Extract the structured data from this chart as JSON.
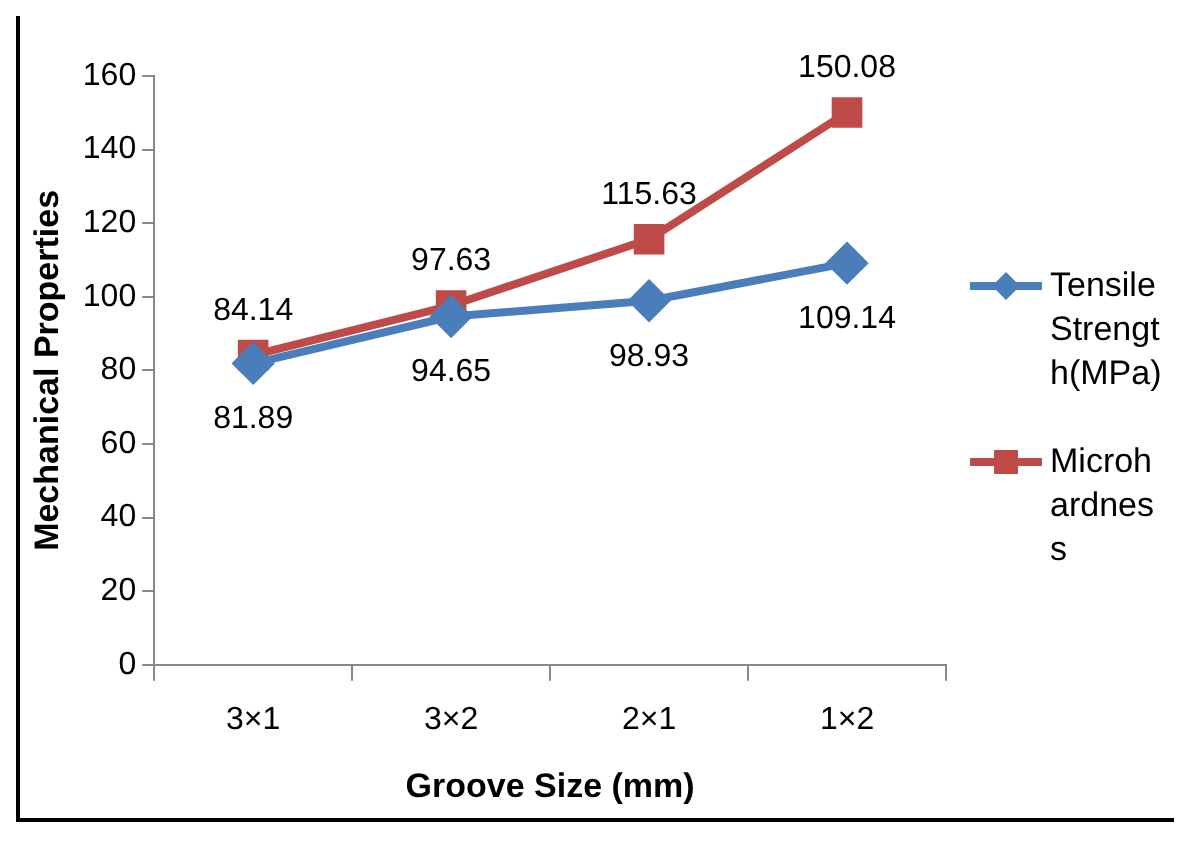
{
  "chart_data": {
    "type": "line",
    "xlabel": "Groove Size (mm)",
    "ylabel": "Mechanical Properties",
    "categories": [
      "3×1",
      "3×2",
      "2×1",
      "1×2"
    ],
    "series": [
      {
        "name": "Tensile Strength(MPa)",
        "color": "#4a7ebb",
        "marker": "diamond",
        "values": [
          81.89,
          94.65,
          98.93,
          109.14
        ]
      },
      {
        "name": "Microhardness",
        "color": "#be4b48",
        "marker": "square",
        "values": [
          84.14,
          97.63,
          115.63,
          150.08
        ]
      }
    ],
    "ylim": [
      0,
      160
    ],
    "yticks": [
      0,
      20,
      40,
      60,
      80,
      100,
      120,
      140,
      160
    ],
    "grid": false,
    "legend": "right",
    "data_labels": true
  }
}
